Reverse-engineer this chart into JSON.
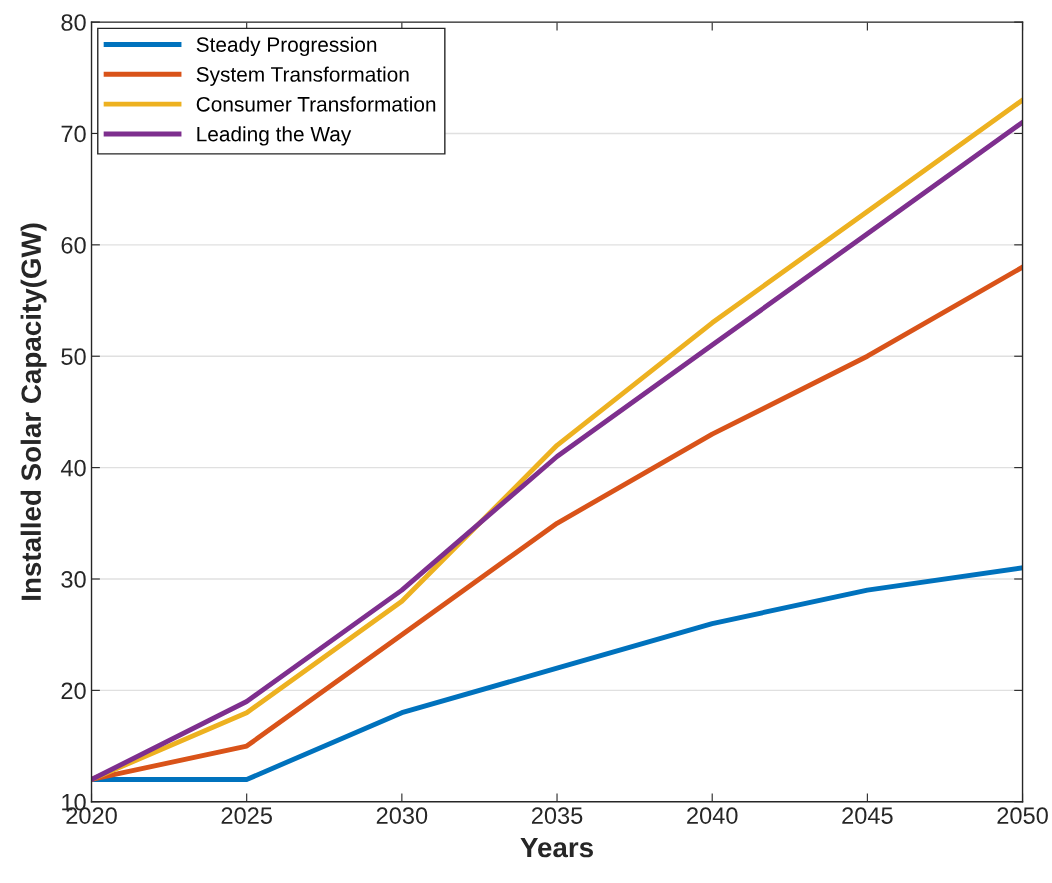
{
  "chart_data": {
    "type": "line",
    "xlabel": "Years",
    "ylabel": "Installed Solar Capacity(GW)",
    "x": [
      2020,
      2025,
      2030,
      2035,
      2040,
      2045,
      2050
    ],
    "series": [
      {
        "name": "Steady Progression",
        "color": "#0072bd",
        "values": [
          12,
          12,
          18,
          22,
          26,
          29,
          31
        ]
      },
      {
        "name": "System Transformation",
        "color": "#d95319",
        "values": [
          12,
          15,
          25,
          35,
          43,
          50,
          58
        ]
      },
      {
        "name": "Consumer Transformation",
        "color": "#edb120",
        "values": [
          12,
          18,
          28,
          42,
          53,
          63,
          73
        ]
      },
      {
        "name": "Leading the Way",
        "color": "#7e2f8e",
        "values": [
          12,
          19,
          29,
          41,
          51,
          61,
          71
        ]
      }
    ],
    "xlim": [
      2020,
      2050
    ],
    "xticks": [
      2020,
      2025,
      2030,
      2035,
      2040,
      2045,
      2050
    ],
    "ylim": [
      10,
      80
    ],
    "yticks": [
      10,
      20,
      30,
      40,
      50,
      60,
      70,
      80
    ],
    "grid": "y",
    "legend": "top left",
    "marker": "none",
    "line_style": "solid"
  }
}
